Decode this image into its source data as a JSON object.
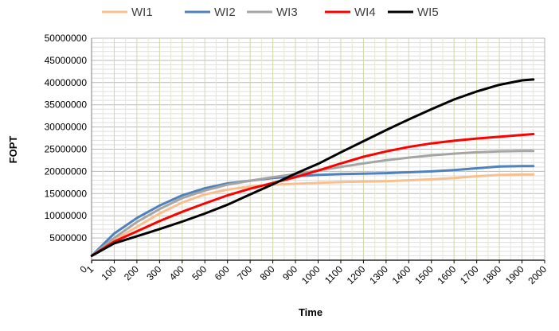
{
  "chart_data": {
    "type": "line",
    "title": "",
    "xlabel": "Time",
    "ylabel": "FOPT",
    "ylim": [
      0,
      50000000
    ],
    "xlim": [
      0,
      2000
    ],
    "grid": true,
    "legend_position": "top",
    "x_tick_labels": [
      "0",
      "1",
      "100",
      "200",
      "300",
      "400",
      "500",
      "600",
      "700",
      "800",
      "900",
      "1000",
      "1100",
      "1200",
      "1300",
      "1400",
      "1500",
      "1600",
      "1700",
      "1800",
      "1900",
      "2000"
    ],
    "y_tick_labels": [
      "5000000",
      "10000000",
      "15000000",
      "20000000",
      "25000000",
      "30000000",
      "35000000",
      "40000000",
      "45000000",
      "50000000"
    ],
    "series": [
      {
        "name": "WI1",
        "color": "#f9bf8f",
        "x": [
          1,
          100,
          200,
          300,
          400,
          500,
          600,
          700,
          800,
          900,
          1000,
          1100,
          1200,
          1300,
          1400,
          1500,
          1600,
          1700,
          1800,
          1900,
          1950
        ],
        "y": [
          1000000,
          4500000,
          7500000,
          10500000,
          13000000,
          14800000,
          15900000,
          16600000,
          17000000,
          17200000,
          17400000,
          17600000,
          17700000,
          17800000,
          18000000,
          18200000,
          18500000,
          18900000,
          19200000,
          19300000,
          19300000
        ]
      },
      {
        "name": "WI2",
        "color": "#4f81bd",
        "x": [
          1,
          100,
          200,
          300,
          400,
          500,
          600,
          700,
          800,
          900,
          1000,
          1100,
          1200,
          1300,
          1400,
          1500,
          1600,
          1700,
          1800,
          1900,
          1950
        ],
        "y": [
          1000000,
          6000000,
          9500000,
          12300000,
          14600000,
          16200000,
          17300000,
          17900000,
          18500000,
          18900000,
          19200000,
          19400000,
          19500000,
          19600000,
          19800000,
          20000000,
          20300000,
          20700000,
          21100000,
          21200000,
          21200000
        ]
      },
      {
        "name": "WI3",
        "color": "#a5a5a5",
        "x": [
          1,
          100,
          200,
          300,
          400,
          500,
          600,
          700,
          800,
          900,
          1000,
          1100,
          1200,
          1300,
          1400,
          1500,
          1600,
          1700,
          1800,
          1900,
          1950
        ],
        "y": [
          1000000,
          5000000,
          8600000,
          11500000,
          14000000,
          15700000,
          17000000,
          17900000,
          18700000,
          19400000,
          20200000,
          21000000,
          21800000,
          22500000,
          23100000,
          23600000,
          24000000,
          24300000,
          24500000,
          24600000,
          24600000
        ]
      },
      {
        "name": "WI4",
        "color": "#ff0000",
        "x": [
          1,
          100,
          200,
          300,
          400,
          500,
          600,
          700,
          800,
          900,
          1000,
          1100,
          1200,
          1300,
          1400,
          1500,
          1600,
          1700,
          1800,
          1900,
          1950
        ],
        "y": [
          1000000,
          4200000,
          6500000,
          8800000,
          10900000,
          12800000,
          14600000,
          16100000,
          17400000,
          18700000,
          20200000,
          21800000,
          23300000,
          24500000,
          25500000,
          26300000,
          26900000,
          27400000,
          27800000,
          28200000,
          28400000
        ]
      },
      {
        "name": "WI5",
        "color": "#000000",
        "x": [
          1,
          100,
          200,
          300,
          400,
          500,
          600,
          700,
          800,
          900,
          1000,
          1100,
          1200,
          1300,
          1400,
          1500,
          1600,
          1700,
          1800,
          1900,
          1950
        ],
        "y": [
          1000000,
          3800000,
          5400000,
          7000000,
          8700000,
          10500000,
          12500000,
          14800000,
          17100000,
          19500000,
          21700000,
          24300000,
          26800000,
          29300000,
          31700000,
          34000000,
          36200000,
          38000000,
          39500000,
          40500000,
          40700000
        ]
      }
    ]
  }
}
